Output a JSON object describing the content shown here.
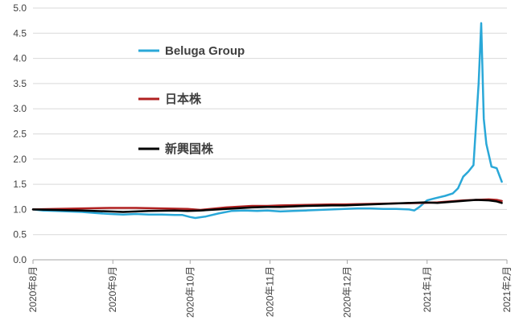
{
  "chart_data": {
    "type": "line",
    "title": "",
    "xlabel": "",
    "ylabel": "",
    "ylim": [
      0,
      5
    ],
    "yticks": [
      "0.0",
      "0.5",
      "1.0",
      "1.5",
      "2.0",
      "2.5",
      "3.0",
      "3.5",
      "4.0",
      "4.5",
      "5.0"
    ],
    "x_ticks": [
      "2020年8月",
      "2020年9月",
      "2020年10月",
      "2020年11月",
      "2020年12月",
      "2021年1月",
      "2021年2月"
    ],
    "x_domain": [
      "2020-08-01",
      "2021-02-01"
    ],
    "grid": "horizontal",
    "legend_position": "upper-middle",
    "series": [
      {
        "name": "Beluga Group",
        "color": "#2aa8d8",
        "points": [
          [
            "2020-08-01",
            1.0
          ],
          [
            "2020-08-05",
            0.98
          ],
          [
            "2020-08-10",
            0.97
          ],
          [
            "2020-08-15",
            0.96
          ],
          [
            "2020-08-20",
            0.95
          ],
          [
            "2020-08-25",
            0.93
          ],
          [
            "2020-08-31",
            0.91
          ],
          [
            "2020-09-05",
            0.9
          ],
          [
            "2020-09-10",
            0.91
          ],
          [
            "2020-09-15",
            0.9
          ],
          [
            "2020-09-20",
            0.9
          ],
          [
            "2020-09-25",
            0.89
          ],
          [
            "2020-09-28",
            0.89
          ],
          [
            "2020-10-01",
            0.85
          ],
          [
            "2020-10-03",
            0.83
          ],
          [
            "2020-10-07",
            0.86
          ],
          [
            "2020-10-12",
            0.92
          ],
          [
            "2020-10-17",
            0.97
          ],
          [
            "2020-10-22",
            0.98
          ],
          [
            "2020-10-27",
            0.97
          ],
          [
            "2020-10-31",
            0.98
          ],
          [
            "2020-11-05",
            0.96
          ],
          [
            "2020-11-10",
            0.97
          ],
          [
            "2020-11-15",
            0.98
          ],
          [
            "2020-11-20",
            0.99
          ],
          [
            "2020-11-25",
            1.0
          ],
          [
            "2020-11-30",
            1.01
          ],
          [
            "2020-12-05",
            1.02
          ],
          [
            "2020-12-10",
            1.02
          ],
          [
            "2020-12-15",
            1.01
          ],
          [
            "2020-12-20",
            1.01
          ],
          [
            "2020-12-25",
            1.0
          ],
          [
            "2020-12-27",
            0.98
          ],
          [
            "2020-12-29",
            1.05
          ],
          [
            "2021-01-01",
            1.18
          ],
          [
            "2021-01-04",
            1.22
          ],
          [
            "2021-01-08",
            1.27
          ],
          [
            "2021-01-11",
            1.32
          ],
          [
            "2021-01-13",
            1.42
          ],
          [
            "2021-01-15",
            1.65
          ],
          [
            "2021-01-17",
            1.75
          ],
          [
            "2021-01-19",
            1.88
          ],
          [
            "2021-01-21",
            3.5
          ],
          [
            "2021-01-22",
            4.7
          ],
          [
            "2021-01-23",
            2.8
          ],
          [
            "2021-01-24",
            2.3
          ],
          [
            "2021-01-26",
            1.85
          ],
          [
            "2021-01-28",
            1.82
          ],
          [
            "2021-01-30",
            1.55
          ]
        ]
      },
      {
        "name": "日本株",
        "color": "#b02020",
        "points": [
          [
            "2020-08-01",
            1.0
          ],
          [
            "2020-08-10",
            1.01
          ],
          [
            "2020-08-20",
            1.02
          ],
          [
            "2020-08-31",
            1.03
          ],
          [
            "2020-09-10",
            1.03
          ],
          [
            "2020-09-20",
            1.02
          ],
          [
            "2020-09-30",
            1.01
          ],
          [
            "2020-10-05",
            0.99
          ],
          [
            "2020-10-15",
            1.04
          ],
          [
            "2020-10-25",
            1.07
          ],
          [
            "2020-10-31",
            1.07
          ],
          [
            "2020-11-05",
            1.08
          ],
          [
            "2020-11-15",
            1.09
          ],
          [
            "2020-11-25",
            1.1
          ],
          [
            "2020-11-30",
            1.1
          ],
          [
            "2020-12-10",
            1.11
          ],
          [
            "2020-12-20",
            1.12
          ],
          [
            "2020-12-31",
            1.13
          ],
          [
            "2021-01-05",
            1.14
          ],
          [
            "2021-01-10",
            1.16
          ],
          [
            "2021-01-15",
            1.18
          ],
          [
            "2021-01-20",
            1.19
          ],
          [
            "2021-01-25",
            1.2
          ],
          [
            "2021-01-28",
            1.19
          ],
          [
            "2021-01-30",
            1.17
          ]
        ]
      },
      {
        "name": "新興国株",
        "color": "#000000",
        "points": [
          [
            "2020-08-01",
            1.0
          ],
          [
            "2020-08-10",
            0.99
          ],
          [
            "2020-08-20",
            0.98
          ],
          [
            "2020-08-31",
            0.96
          ],
          [
            "2020-09-05",
            0.95
          ],
          [
            "2020-09-15",
            0.97
          ],
          [
            "2020-09-25",
            0.98
          ],
          [
            "2020-09-30",
            0.97
          ],
          [
            "2020-10-05",
            0.98
          ],
          [
            "2020-10-15",
            1.01
          ],
          [
            "2020-10-25",
            1.04
          ],
          [
            "2020-10-31",
            1.05
          ],
          [
            "2020-11-05",
            1.05
          ],
          [
            "2020-11-15",
            1.07
          ],
          [
            "2020-11-25",
            1.08
          ],
          [
            "2020-11-30",
            1.08
          ],
          [
            "2020-12-10",
            1.1
          ],
          [
            "2020-12-20",
            1.12
          ],
          [
            "2020-12-31",
            1.14
          ],
          [
            "2021-01-05",
            1.13
          ],
          [
            "2021-01-10",
            1.15
          ],
          [
            "2021-01-15",
            1.17
          ],
          [
            "2021-01-20",
            1.19
          ],
          [
            "2021-01-25",
            1.18
          ],
          [
            "2021-01-28",
            1.16
          ],
          [
            "2021-01-30",
            1.13
          ]
        ]
      }
    ]
  }
}
